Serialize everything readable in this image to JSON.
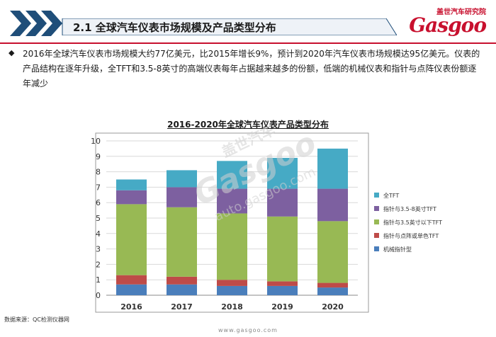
{
  "header": {
    "title": "2.1 全球汽车仪表市场规模及产品类型分布",
    "logo_cn": "盖世汽车研究院",
    "logo_en": "Gasgoo",
    "accent_color": "#c8102e",
    "band_color": "#1f4e79"
  },
  "body": {
    "paragraph": "2016年全球汽车仪表市场规模大约77亿美元，比2015年增长9%，预计到2020年汽车仪表市场规模达95亿美元。仪表的产品结构在逐年升级，全TFT和3.5-8英寸的高端仪表每年占据越来越多的份额，低端的机械仪表和指针与点阵仪表份额逐年减少"
  },
  "watermark": {
    "brand_cn": "盖世汽车",
    "brand_en": "Gasgoo",
    "url": "auto.gasgoo.com"
  },
  "source": "数据来源：QC检测仪器网",
  "footer": "www.gasgoo.com",
  "chart_data": {
    "type": "bar",
    "stacked": true,
    "title": "2016-2020年全球汽车仪表产品类型分布",
    "categories": [
      "2016",
      "2017",
      "2018",
      "2019",
      "2020"
    ],
    "ylim": [
      0,
      10
    ],
    "yticks": [
      0,
      1,
      2,
      3,
      4,
      5,
      6,
      7,
      8,
      9,
      10
    ],
    "grid": true,
    "legend_position": "right",
    "series": [
      {
        "name": "机械指针型",
        "color": "#4a7ebb",
        "values": [
          0.7,
          0.7,
          0.6,
          0.6,
          0.5
        ]
      },
      {
        "name": "指针与点阵或单色TFT",
        "color": "#be4b48",
        "values": [
          0.6,
          0.5,
          0.4,
          0.3,
          0.3
        ]
      },
      {
        "name": "指针与3.5英寸以下TFT",
        "color": "#98b954",
        "values": [
          4.6,
          4.5,
          4.3,
          4.2,
          4.0
        ]
      },
      {
        "name": "指针与3.5-8英寸TFT",
        "color": "#7d60a0",
        "values": [
          0.9,
          1.3,
          1.6,
          1.8,
          2.1
        ]
      },
      {
        "name": "全TFT",
        "color": "#46aac5",
        "values": [
          0.7,
          1.1,
          1.8,
          2.0,
          2.6
        ]
      }
    ]
  }
}
